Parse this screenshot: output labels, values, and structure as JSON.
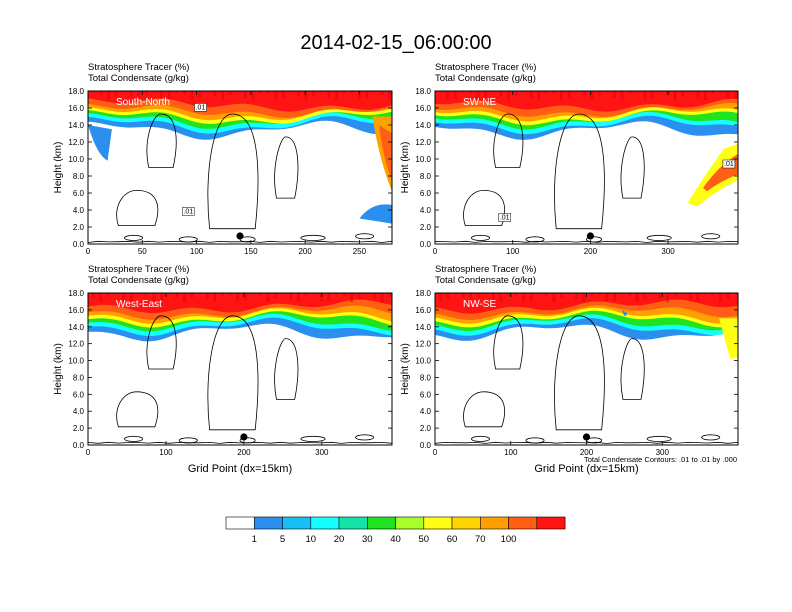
{
  "figure": {
    "title": "2014-02-15_06:00:00",
    "contour_note": "Total Condensate Contours: .01 to .01 by .000"
  },
  "colorbar": {
    "labels": [
      "1",
      "5",
      "10",
      "20",
      "30",
      "40",
      "50",
      "60",
      "70",
      "100"
    ],
    "colors": [
      "#ffffff",
      "#2b8ff0",
      "#18bff5",
      "#15ffff",
      "#14e3a8",
      "#1ee31e",
      "#a8ff2a",
      "#ffff14",
      "#ffd400",
      "#ffa000",
      "#ff5f14",
      "#ff1414"
    ]
  },
  "chart_data": [
    {
      "type": "heatmap",
      "cross_section": "South-North",
      "header_lines": [
        "Stratosphere Tracer   (%)",
        "Total Condensate   (g/kg)"
      ],
      "ylabel": "Height (km)",
      "xlabel": "",
      "xlim": [
        0,
        280
      ],
      "ylim": [
        0,
        18
      ],
      "xticks": [
        0,
        50,
        100,
        150,
        200,
        250
      ],
      "yticks": [
        "0.0",
        "2.0",
        "4.0",
        "6.0",
        "8.0",
        "10.0",
        "12.0",
        "14.0",
        "16.0",
        "18.0"
      ],
      "contour_labels": [
        ".01",
        ".01"
      ],
      "marker_x": 140
    },
    {
      "type": "heatmap",
      "cross_section": "SW-NE",
      "header_lines": [
        "Stratosphere Tracer   (%)",
        "Total Condensate   (g/kg)"
      ],
      "ylabel": "Height (km)",
      "xlabel": "",
      "xlim": [
        0,
        390
      ],
      "ylim": [
        0,
        18
      ],
      "xticks": [
        0,
        100,
        200,
        300
      ],
      "yticks": [
        "0.0",
        "2.0",
        "4.0",
        "6.0",
        "8.0",
        "10.0",
        "12.0",
        "14.0",
        "16.0",
        "18.0"
      ],
      "contour_labels": [
        ".01",
        ".01"
      ],
      "marker_x": 200
    },
    {
      "type": "heatmap",
      "cross_section": "West-East",
      "header_lines": [
        "Stratosphere Tracer   (%)",
        "Total Condensate   (g/kg)"
      ],
      "ylabel": "Height (km)",
      "xlabel": "Grid Point (dx=15km)",
      "xlim": [
        0,
        390
      ],
      "ylim": [
        0,
        18
      ],
      "xticks": [
        0,
        100,
        200,
        300
      ],
      "yticks": [
        "0.0",
        "2.0",
        "4.0",
        "6.0",
        "8.0",
        "10.0",
        "12.0",
        "14.0",
        "16.0",
        "18.0"
      ],
      "contour_labels": [],
      "marker_x": 200
    },
    {
      "type": "heatmap",
      "cross_section": "NW-SE",
      "header_lines": [
        "Stratosphere Tracer   (%)",
        "Total Condensate   (g/kg)"
      ],
      "ylabel": "Height (km)",
      "xlabel": "Grid Point (dx=15km)",
      "xlim": [
        0,
        400
      ],
      "ylim": [
        0,
        18
      ],
      "xticks": [
        0,
        100,
        200,
        300
      ],
      "yticks": [
        "0.0",
        "2.0",
        "4.0",
        "6.0",
        "8.0",
        "10.0",
        "12.0",
        "14.0",
        "16.0",
        "18.0"
      ],
      "contour_labels": [],
      "marker_x": 200
    }
  ]
}
